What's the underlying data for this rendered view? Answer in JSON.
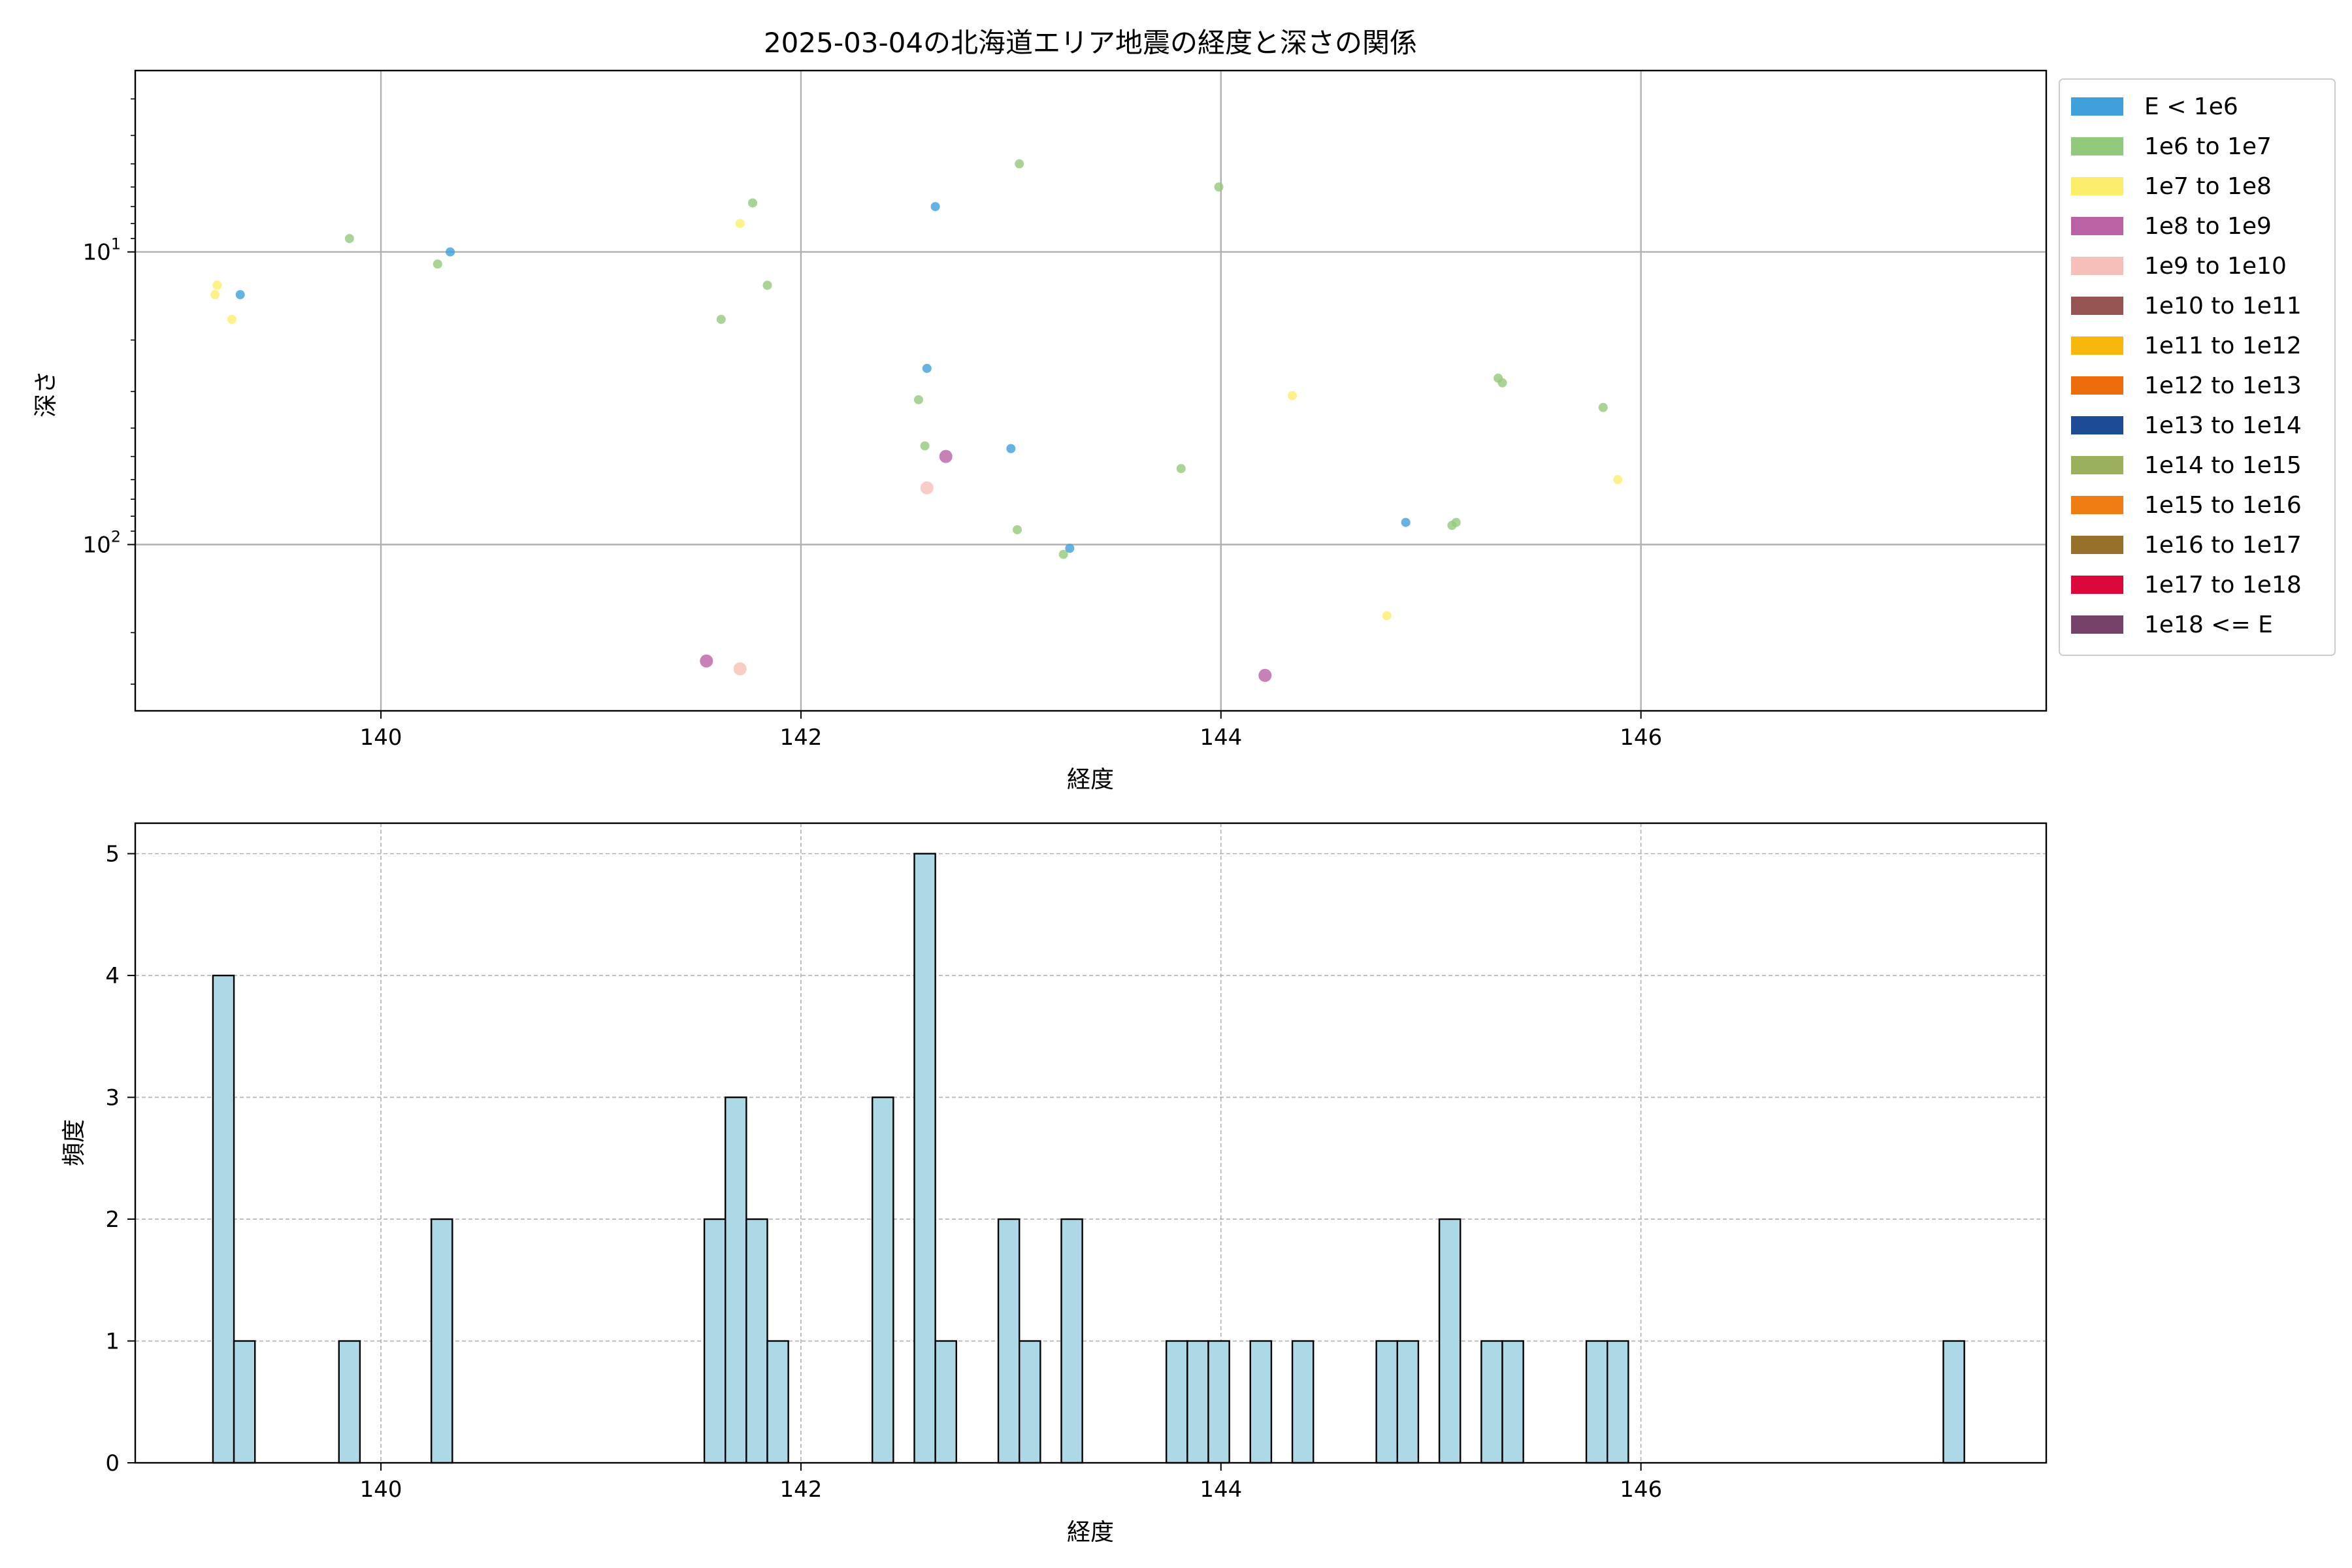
{
  "chart_data": [
    {
      "type": "scatter",
      "title": "2025-03-04の北海道エリア地震の経度と深さの関係",
      "xlabel": "経度",
      "ylabel": "深さ",
      "xlim": [
        138.83,
        147.93
      ],
      "ylim": [
        370,
        2.4
      ],
      "yscale": "log",
      "yaxis_inverted": true,
      "grid": true,
      "xticks": [
        140,
        142,
        144,
        146
      ],
      "xtick_labels": [
        "140",
        "142",
        "144",
        "146"
      ],
      "yticks": [
        10,
        100
      ],
      "ytick_labels": [
        {
          "base": "10",
          "exp": "1"
        },
        {
          "base": "10",
          "exp": "2"
        }
      ],
      "legend": {
        "placement": "outside-right",
        "entries": [
          {
            "label": "E < 1e6",
            "color": "#3fa0dc"
          },
          {
            "label": "1e6 to 1e7",
            "color": "#93c97a"
          },
          {
            "label": "1e7 to 1e8",
            "color": "#fcee6b"
          },
          {
            "label": "1e8 to 1e9",
            "color": "#b962a4"
          },
          {
            "label": "1e9 to 1e10",
            "color": "#f5c0b8"
          },
          {
            "label": "1e10 to 1e11",
            "color": "#965452"
          },
          {
            "label": "1e11 to 1e12",
            "color": "#f7b70c"
          },
          {
            "label": "1e12 to 1e13",
            "color": "#ed6d0c"
          },
          {
            "label": "1e13 to 1e14",
            "color": "#1e4c94"
          },
          {
            "label": "1e14 to 1e15",
            "color": "#9bb05a"
          },
          {
            "label": "1e15 to 1e16",
            "color": "#ef7d13"
          },
          {
            "label": "1e16 to 1e17",
            "color": "#97712c"
          },
          {
            "label": "1e17 to 1e18",
            "color": "#dc083b"
          },
          {
            "label": "1e18 <= E",
            "color": "#774269"
          }
        ]
      },
      "series": [
        {
          "name": "E < 1e6",
          "color": "#3fa0dc",
          "points": [
            [
              139.33,
              14.0
            ],
            [
              140.33,
              10.0
            ],
            [
              142.64,
              7.0
            ],
            [
              142.6,
              25.0
            ],
            [
              143.0,
              47.0
            ],
            [
              143.28,
              103.0
            ],
            [
              144.88,
              84.0
            ]
          ]
        },
        {
          "name": "1e6 to 1e7",
          "color": "#93c97a",
          "points": [
            [
              139.85,
              9.0
            ],
            [
              140.27,
              11.0
            ],
            [
              141.77,
              6.8
            ],
            [
              141.84,
              13.0
            ],
            [
              141.62,
              17.0
            ],
            [
              143.04,
              5.0
            ],
            [
              143.99,
              6.0
            ],
            [
              142.56,
              32.0
            ],
            [
              142.59,
              46.0
            ],
            [
              143.81,
              55.0
            ],
            [
              143.03,
              89.0
            ],
            [
              143.25,
              108.0
            ],
            [
              145.1,
              86.0
            ],
            [
              145.12,
              84.0
            ],
            [
              145.32,
              27.0
            ],
            [
              145.34,
              28.0
            ],
            [
              145.82,
              34.0
            ]
          ]
        },
        {
          "name": "1e7 to 1e8",
          "color": "#fcee6b",
          "points": [
            [
              139.22,
              13.0
            ],
            [
              139.21,
              14.0
            ],
            [
              139.29,
              17.0
            ],
            [
              141.71,
              8.0
            ],
            [
              144.34,
              31.0
            ],
            [
              145.89,
              60.0
            ],
            [
              144.79,
              175.0
            ]
          ]
        },
        {
          "name": "1e8 to 1e9",
          "color": "#b962a4",
          "points": [
            [
              142.69,
              50.0
            ],
            [
              141.55,
              250.0
            ],
            [
              144.21,
              280.0
            ]
          ]
        },
        {
          "name": "1e9 to 1e10",
          "color": "#f5c0b8",
          "points": [
            [
              142.6,
              64.0
            ],
            [
              141.71,
              266.0
            ]
          ]
        }
      ]
    },
    {
      "type": "bar",
      "subtype": "histogram",
      "xlabel": "経度",
      "ylabel": "頻度",
      "xlim": [
        138.83,
        147.93
      ],
      "ylim": [
        0,
        5.25
      ],
      "grid": true,
      "xticks": [
        140,
        142,
        144,
        146
      ],
      "xtick_labels": [
        "140",
        "142",
        "144",
        "146"
      ],
      "yticks": [
        0,
        1,
        2,
        3,
        4,
        5
      ],
      "ytick_labels": [
        "0",
        "1",
        "2",
        "3",
        "4",
        "5"
      ],
      "bar_color": "#add8e6",
      "edge_color": "#000000",
      "bin_width": 0.1,
      "bins": [
        {
          "x0": 139.2,
          "count": 4
        },
        {
          "x0": 139.3,
          "count": 1
        },
        {
          "x0": 139.8,
          "count": 1
        },
        {
          "x0": 140.24,
          "count": 2
        },
        {
          "x0": 141.54,
          "count": 2
        },
        {
          "x0": 141.64,
          "count": 3
        },
        {
          "x0": 141.74,
          "count": 2
        },
        {
          "x0": 141.84,
          "count": 1
        },
        {
          "x0": 142.34,
          "count": 3
        },
        {
          "x0": 142.54,
          "count": 5
        },
        {
          "x0": 142.64,
          "count": 1
        },
        {
          "x0": 142.94,
          "count": 2
        },
        {
          "x0": 143.04,
          "count": 1
        },
        {
          "x0": 143.24,
          "count": 2
        },
        {
          "x0": 143.74,
          "count": 1
        },
        {
          "x0": 143.84,
          "count": 1
        },
        {
          "x0": 143.94,
          "count": 1
        },
        {
          "x0": 144.14,
          "count": 1
        },
        {
          "x0": 144.34,
          "count": 1
        },
        {
          "x0": 144.74,
          "count": 1
        },
        {
          "x0": 144.84,
          "count": 1
        },
        {
          "x0": 145.04,
          "count": 2
        },
        {
          "x0": 145.24,
          "count": 1
        },
        {
          "x0": 145.34,
          "count": 1
        },
        {
          "x0": 145.74,
          "count": 1
        },
        {
          "x0": 145.84,
          "count": 1
        },
        {
          "x0": 147.44,
          "count": 1
        }
      ]
    }
  ]
}
